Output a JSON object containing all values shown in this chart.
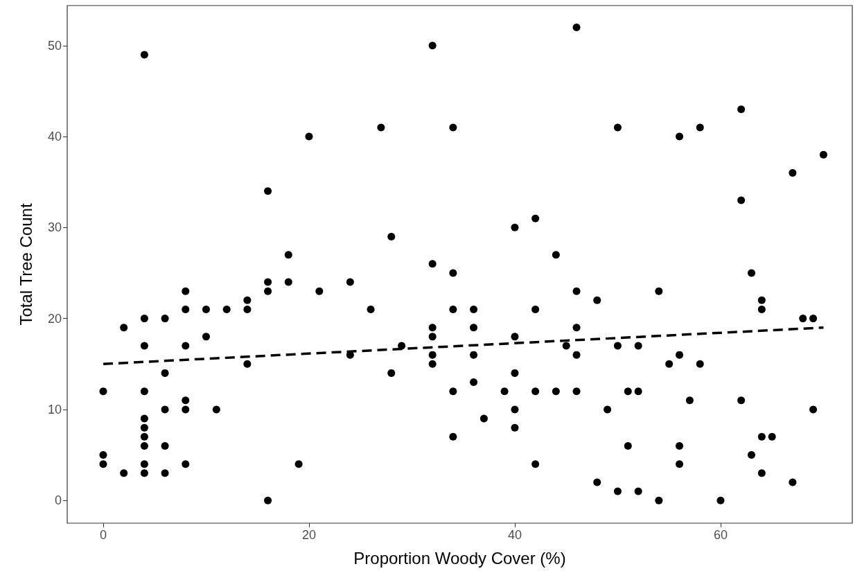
{
  "chart_data": {
    "type": "scatter",
    "xlabel": "Proportion Woody Cover (%)",
    "ylabel": "Total Tree Count",
    "xlim": [
      -3.5,
      72.8
    ],
    "ylim": [
      -2.5,
      54.4
    ],
    "xticks": [
      0,
      20,
      40,
      60
    ],
    "yticks": [
      0,
      10,
      20,
      30,
      40,
      50
    ],
    "grid": false,
    "series": [
      {
        "color": "#000000",
        "marker": "circle",
        "x": [
          0,
          0,
          0,
          2,
          2,
          4,
          4,
          4,
          4,
          4,
          4,
          4,
          4,
          4,
          4,
          6,
          6,
          6,
          6,
          6,
          8,
          8,
          8,
          8,
          8,
          8,
          10,
          10,
          11,
          12,
          14,
          14,
          14,
          16,
          16,
          16,
          16,
          18,
          18,
          19,
          20,
          21,
          24,
          24,
          26,
          27,
          28,
          28,
          29,
          32,
          32,
          32,
          32,
          32,
          32,
          34,
          34,
          34,
          34,
          34,
          36,
          36,
          36,
          36,
          37,
          39,
          40,
          40,
          40,
          40,
          40,
          42,
          42,
          42,
          42,
          44,
          44,
          45,
          46,
          46,
          46,
          46,
          46,
          48,
          48,
          49,
          50,
          50,
          50,
          51,
          51,
          52,
          52,
          52,
          54,
          54,
          55,
          56,
          56,
          56,
          56,
          57,
          58,
          58,
          60,
          62,
          62,
          62,
          63,
          63,
          64,
          64,
          64,
          64,
          65,
          67,
          67,
          68,
          69,
          69,
          70
        ],
        "values": [
          12,
          5,
          4,
          19,
          3,
          49,
          20,
          17,
          12,
          9,
          8,
          7,
          6,
          4,
          3,
          20,
          14,
          10,
          6,
          3,
          23,
          21,
          17,
          11,
          10,
          4,
          21,
          18,
          10,
          21,
          22,
          21,
          15,
          34,
          24,
          23,
          0,
          27,
          24,
          4,
          40,
          23,
          24,
          16,
          21,
          41,
          29,
          14,
          17,
          50,
          26,
          19,
          18,
          16,
          15,
          41,
          25,
          21,
          12,
          7,
          21,
          19,
          16,
          13,
          9,
          12,
          30,
          18,
          14,
          10,
          8,
          31,
          21,
          12,
          4,
          27,
          12,
          17,
          52,
          23,
          19,
          16,
          12,
          22,
          2,
          10,
          41,
          17,
          1,
          12,
          6,
          17,
          12,
          1,
          23,
          0,
          15,
          40,
          16,
          6,
          4,
          11,
          41,
          15,
          0,
          43,
          33,
          11,
          25,
          5,
          22,
          21,
          7,
          3,
          7,
          36,
          2,
          20,
          20,
          10,
          38
        ]
      },
      {
        "type": "line",
        "color": "#000000",
        "marker": "none",
        "line_style": "dashed",
        "x": [
          0,
          70
        ],
        "values": [
          15,
          19
        ]
      }
    ]
  }
}
